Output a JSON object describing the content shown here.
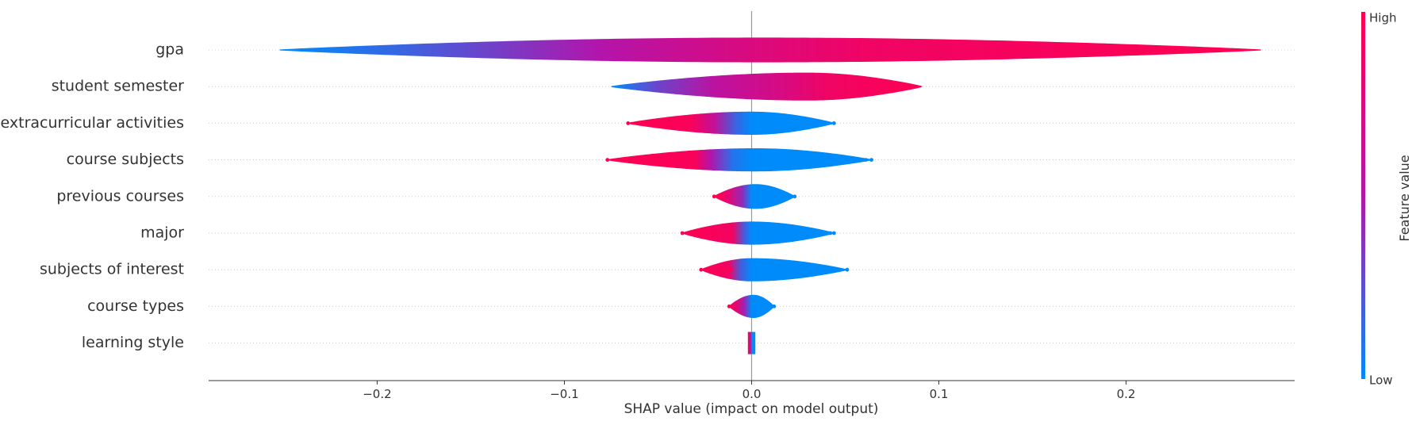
{
  "chart_data": {
    "type": "violin",
    "title": "",
    "xlabel": "SHAP value (impact on model output)",
    "xlim": [
      -0.29,
      0.29
    ],
    "x_ticks": [
      -0.2,
      -0.1,
      0.0,
      0.1,
      0.2
    ],
    "x_tick_labels": [
      "−0.2",
      "−0.1",
      "0.0",
      "0.1",
      "0.2"
    ],
    "colorbar": {
      "title": "Feature value",
      "high_label": "High",
      "low_label": "Low",
      "low_color": "#008bfb",
      "high_color": "#ff0052"
    },
    "features": [
      {
        "name": "gpa",
        "min": -0.252,
        "max": 0.272,
        "mode": 0.005,
        "max_halfwidth_px": 15,
        "color_stops": [
          [
            -0.252,
            0.0
          ],
          [
            -0.19,
            0.15
          ],
          [
            -0.08,
            0.5
          ],
          [
            0.0,
            0.75
          ],
          [
            0.06,
            0.9
          ],
          [
            0.272,
            1.0
          ]
        ],
        "points": []
      },
      {
        "name": "student semester",
        "min": -0.075,
        "max": 0.091,
        "mode": 0.03,
        "max_halfwidth_px": 17,
        "color_stops": [
          [
            -0.075,
            0.0
          ],
          [
            -0.05,
            0.3
          ],
          [
            -0.02,
            0.55
          ],
          [
            0.02,
            0.75
          ],
          [
            0.04,
            0.9
          ],
          [
            0.091,
            1.0
          ]
        ],
        "points": []
      },
      {
        "name": "extracurricular activities",
        "min": -0.066,
        "max": 0.044,
        "mode": 0.0,
        "max_halfwidth_px": 14,
        "color_stops": [
          [
            -0.066,
            1.0
          ],
          [
            -0.032,
            0.95
          ],
          [
            -0.02,
            0.6
          ],
          [
            -0.008,
            0.15
          ],
          [
            0.0,
            0.0
          ],
          [
            0.044,
            0.0
          ]
        ],
        "points": [
          {
            "x": -0.066,
            "c": 1.0
          },
          {
            "x": -0.057,
            "c": 1.0
          },
          {
            "x": -0.055,
            "c": 1.0
          },
          {
            "x": -0.05,
            "c": 1.0
          },
          {
            "x": -0.048,
            "c": 1.0
          },
          {
            "x": -0.045,
            "c": 1.0
          },
          {
            "x": -0.042,
            "c": 1.0
          },
          {
            "x": -0.04,
            "c": 1.0
          },
          {
            "x": -0.038,
            "c": 1.0
          },
          {
            "x": -0.036,
            "c": 1.0
          },
          {
            "x": -0.034,
            "c": 1.0
          },
          {
            "x": 0.031,
            "c": 0.0
          },
          {
            "x": 0.033,
            "c": 0.0
          },
          {
            "x": 0.035,
            "c": 0.0
          },
          {
            "x": 0.038,
            "c": 0.0
          },
          {
            "x": 0.04,
            "c": 0.0
          },
          {
            "x": 0.044,
            "c": 0.0
          }
        ]
      },
      {
        "name": "course subjects",
        "min": -0.077,
        "max": 0.064,
        "mode": 0.002,
        "max_halfwidth_px": 14,
        "color_stops": [
          [
            -0.077,
            1.0
          ],
          [
            -0.03,
            0.95
          ],
          [
            -0.022,
            0.5
          ],
          [
            -0.01,
            0.1
          ],
          [
            0.0,
            0.0
          ],
          [
            0.064,
            0.0
          ]
        ],
        "points": [
          {
            "x": -0.077,
            "c": 1.0
          },
          {
            "x": -0.059,
            "c": 1.0
          },
          {
            "x": -0.056,
            "c": 1.0
          },
          {
            "x": -0.053,
            "c": 1.0
          },
          {
            "x": -0.05,
            "c": 1.0
          },
          {
            "x": -0.047,
            "c": 1.0
          },
          {
            "x": -0.044,
            "c": 1.0
          },
          {
            "x": -0.042,
            "c": 1.0
          },
          {
            "x": -0.04,
            "c": 1.0
          },
          {
            "x": -0.037,
            "c": 1.0
          },
          {
            "x": -0.034,
            "c": 1.0
          },
          {
            "x": 0.028,
            "c": 0.0
          },
          {
            "x": 0.031,
            "c": 0.0
          },
          {
            "x": 0.034,
            "c": 0.0
          },
          {
            "x": 0.04,
            "c": 0.0
          },
          {
            "x": 0.041,
            "c": 0.0
          },
          {
            "x": 0.061,
            "c": 0.0
          },
          {
            "x": 0.064,
            "c": 0.0
          }
        ]
      },
      {
        "name": "previous courses",
        "min": -0.02,
        "max": 0.023,
        "mode": 0.002,
        "max_halfwidth_px": 15,
        "color_stops": [
          [
            -0.02,
            1.0
          ],
          [
            -0.012,
            0.8
          ],
          [
            -0.005,
            0.4
          ],
          [
            0.0,
            0.0
          ],
          [
            0.023,
            0.0
          ]
        ],
        "points": [
          {
            "x": -0.02,
            "c": 1.0
          },
          {
            "x": -0.017,
            "c": 1.0
          },
          {
            "x": -0.015,
            "c": 1.0
          },
          {
            "x": 0.016,
            "c": 0.0
          },
          {
            "x": 0.018,
            "c": 0.0
          },
          {
            "x": 0.021,
            "c": 0.0
          },
          {
            "x": 0.023,
            "c": 0.0
          }
        ]
      },
      {
        "name": "major",
        "min": -0.037,
        "max": 0.044,
        "mode": 0.0,
        "max_halfwidth_px": 14,
        "color_stops": [
          [
            -0.037,
            1.0
          ],
          [
            -0.01,
            0.9
          ],
          [
            -0.004,
            0.2
          ],
          [
            0.0,
            0.0
          ],
          [
            0.044,
            0.0
          ]
        ],
        "points": [
          {
            "x": -0.037,
            "c": 1.0
          },
          {
            "x": -0.034,
            "c": 1.0
          },
          {
            "x": -0.03,
            "c": 1.0
          },
          {
            "x": -0.027,
            "c": 1.0
          },
          {
            "x": -0.024,
            "c": 1.0
          },
          {
            "x": -0.021,
            "c": 1.0
          },
          {
            "x": -0.018,
            "c": 1.0
          },
          {
            "x": -0.015,
            "c": 1.0
          },
          {
            "x": -0.012,
            "c": 1.0
          },
          {
            "x": 0.016,
            "c": 0.0
          },
          {
            "x": 0.019,
            "c": 0.0
          },
          {
            "x": 0.022,
            "c": 0.0
          },
          {
            "x": 0.025,
            "c": 0.0
          },
          {
            "x": 0.028,
            "c": 0.0
          },
          {
            "x": 0.03,
            "c": 0.0
          },
          {
            "x": 0.042,
            "c": 0.0
          },
          {
            "x": 0.044,
            "c": 0.0
          }
        ]
      },
      {
        "name": "subjects of interest",
        "min": -0.027,
        "max": 0.051,
        "mode": 0.0,
        "max_halfwidth_px": 14,
        "color_stops": [
          [
            -0.027,
            1.0
          ],
          [
            -0.012,
            0.9
          ],
          [
            -0.006,
            0.2
          ],
          [
            0.0,
            0.0
          ],
          [
            0.051,
            0.0
          ]
        ],
        "points": [
          {
            "x": -0.027,
            "c": 1.0
          },
          {
            "x": -0.017,
            "c": 1.0
          },
          {
            "x": -0.015,
            "c": 1.0
          },
          {
            "x": -0.013,
            "c": 1.0
          },
          {
            "x": -0.011,
            "c": 1.0
          },
          {
            "x": 0.014,
            "c": 0.0
          },
          {
            "x": 0.016,
            "c": 0.0
          },
          {
            "x": 0.018,
            "c": 0.0
          },
          {
            "x": 0.02,
            "c": 0.0
          },
          {
            "x": 0.023,
            "c": 0.0
          },
          {
            "x": 0.036,
            "c": 0.0
          },
          {
            "x": 0.051,
            "c": 0.0
          }
        ]
      },
      {
        "name": "course types",
        "min": -0.012,
        "max": 0.012,
        "mode": 0.001,
        "max_halfwidth_px": 14,
        "color_stops": [
          [
            -0.012,
            1.0
          ],
          [
            -0.008,
            0.8
          ],
          [
            -0.004,
            0.45
          ],
          [
            0.0,
            0.0
          ],
          [
            0.012,
            0.0
          ]
        ],
        "points": [
          {
            "x": -0.012,
            "c": 1.0
          },
          {
            "x": 0.01,
            "c": 0.0
          },
          {
            "x": 0.012,
            "c": 0.0
          }
        ]
      },
      {
        "name": "learning style",
        "min": -0.002,
        "max": 0.002,
        "mode": 0.001,
        "max_halfwidth_px": 14,
        "color_stops": [
          [
            -0.002,
            1.0
          ],
          [
            -0.0005,
            0.6
          ],
          [
            0.0,
            0.0
          ],
          [
            0.002,
            0.0
          ]
        ],
        "points": [],
        "rectangular": true
      }
    ]
  }
}
